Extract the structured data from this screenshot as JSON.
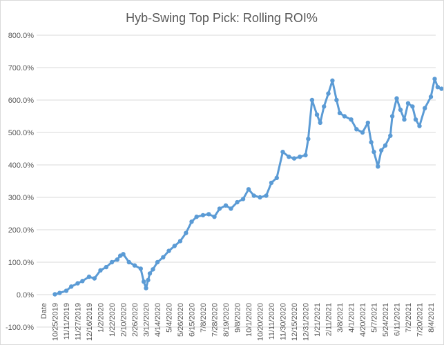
{
  "chart_data": {
    "type": "line",
    "title": "Hyb-Swing Top Pick: Rolling ROI%",
    "xlabel": "",
    "ylabel": "",
    "ylim": [
      -100,
      800
    ],
    "y_ticks": [
      "-100.0%",
      "0.0%",
      "100.0%",
      "200.0%",
      "300.0%",
      "400.0%",
      "500.0%",
      "600.0%",
      "700.0%",
      "800.0%"
    ],
    "x_tick_labels": [
      "Date",
      "10/25/2019",
      "11/11/2019",
      "11/27/2019",
      "12/16/2019",
      "1/2/2020",
      "1/22/2020",
      "2/10/2020",
      "2/26/2020",
      "3/12/2020",
      "4/14/2020",
      "5/4/2020",
      "5/26/2020",
      "6/15/2020",
      "7/8/2020",
      "7/28/2020",
      "8/19/2020",
      "9/8/2020",
      "10/1/2020",
      "10/20/2020",
      "11/11/2020",
      "11/30/2020",
      "12/15/2020",
      "12/31/2020",
      "1/21/2021",
      "2/11/2021",
      "3/8/2021",
      "4/1/2021",
      "4/20/2021",
      "5/7/2021",
      "5/24/2021",
      "6/11/2021",
      "7/2/2021",
      "7/20/2021",
      "8/4/2021"
    ],
    "grid": true,
    "legend": "none",
    "series": [
      {
        "color": "#5b9bd5",
        "x": [
          "10/25/2019",
          "11/1/2019",
          "11/11/2019",
          "11/18/2019",
          "11/27/2019",
          "12/5/2019",
          "12/16/2019",
          "12/24/2019",
          "1/2/2020",
          "1/12/2020",
          "1/22/2020",
          "1/31/2020",
          "2/5/2020",
          "2/10/2020",
          "2/18/2020",
          "2/26/2020",
          "3/5/2020",
          "3/9/2020",
          "3/12/2020",
          "3/18/2020",
          "3/23/2020",
          "4/1/2020",
          "4/14/2020",
          "4/24/2020",
          "5/4/2020",
          "5/15/2020",
          "5/26/2020",
          "6/5/2020",
          "6/15/2020",
          "6/25/2020",
          "7/8/2020",
          "7/18/2020",
          "7/28/2020",
          "8/7/2020",
          "8/19/2020",
          "8/28/2020",
          "9/8/2020",
          "9/20/2020",
          "10/1/2020",
          "10/10/2020",
          "10/20/2020",
          "11/1/2020",
          "11/11/2020",
          "11/20/2020",
          "11/30/2020",
          "12/8/2020",
          "12/15/2020",
          "12/23/2020",
          "12/31/2020",
          "1/5/2021",
          "1/12/2021",
          "1/21/2021",
          "1/27/2021",
          "2/3/2021",
          "2/11/2021",
          "2/20/2021",
          "3/1/2021",
          "3/8/2021",
          "3/18/2021",
          "4/1/2021",
          "4/10/2021",
          "4/20/2021",
          "4/28/2021",
          "5/3/2021",
          "5/7/2021",
          "5/13/2021",
          "5/18/2021",
          "5/24/2021",
          "6/1/2021",
          "6/4/2021",
          "6/11/2021",
          "6/18/2021",
          "6/25/2021",
          "7/2/2021",
          "7/9/2021",
          "7/14/2021",
          "7/20/2021",
          "7/27/2021",
          "8/4/2021",
          "8/9/2021",
          "8/13/2021",
          "8/18/2021"
        ],
        "values": [
          1,
          5,
          12,
          25,
          35,
          42,
          55,
          50,
          75,
          85,
          100,
          108,
          120,
          125,
          100,
          90,
          80,
          40,
          20,
          45,
          65,
          78,
          100,
          115,
          135,
          150,
          165,
          190,
          225,
          240,
          245,
          248,
          240,
          265,
          275,
          265,
          285,
          295,
          325,
          305,
          300,
          305,
          345,
          360,
          440,
          425,
          420,
          425,
          430,
          480,
          600,
          555,
          530,
          580,
          620,
          660,
          600,
          560,
          550,
          540,
          510,
          500,
          530,
          470,
          440,
          395,
          445,
          460,
          490,
          550,
          605,
          570,
          540,
          590,
          580,
          540,
          520,
          575,
          610,
          665,
          640,
          635
        ]
      }
    ]
  }
}
